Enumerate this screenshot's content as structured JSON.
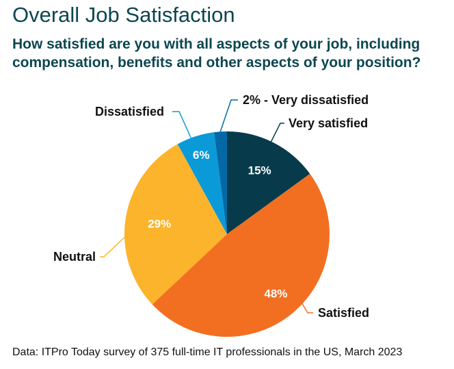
{
  "title": "Overall Job Satisfaction",
  "subtitle": "How satisfied are you with all aspects of your job, including compensation, benefits and other aspects of your position?",
  "source": "Data: ITPro Today survey of 375 full-time IT professionals in the US, March 2023",
  "chart_data": {
    "type": "pie",
    "title": "Overall Job Satisfaction",
    "slices": [
      {
        "label": "Very satisfied",
        "value": 15,
        "value_label": "15%",
        "color": "#073b4c"
      },
      {
        "label": "Satisfied",
        "value": 48,
        "value_label": "48%",
        "color": "#f26f22"
      },
      {
        "label": "Neutral",
        "value": 29,
        "value_label": "29%",
        "color": "#fbb42b"
      },
      {
        "label": "Dissatisfied",
        "value": 6,
        "value_label": "6%",
        "color": "#0a9ad8"
      },
      {
        "label": "2% - Very dissatisfied",
        "value": 2,
        "value_label": "",
        "color": "#0568a6"
      }
    ],
    "start_angle": "top",
    "direction": "clockwise"
  }
}
